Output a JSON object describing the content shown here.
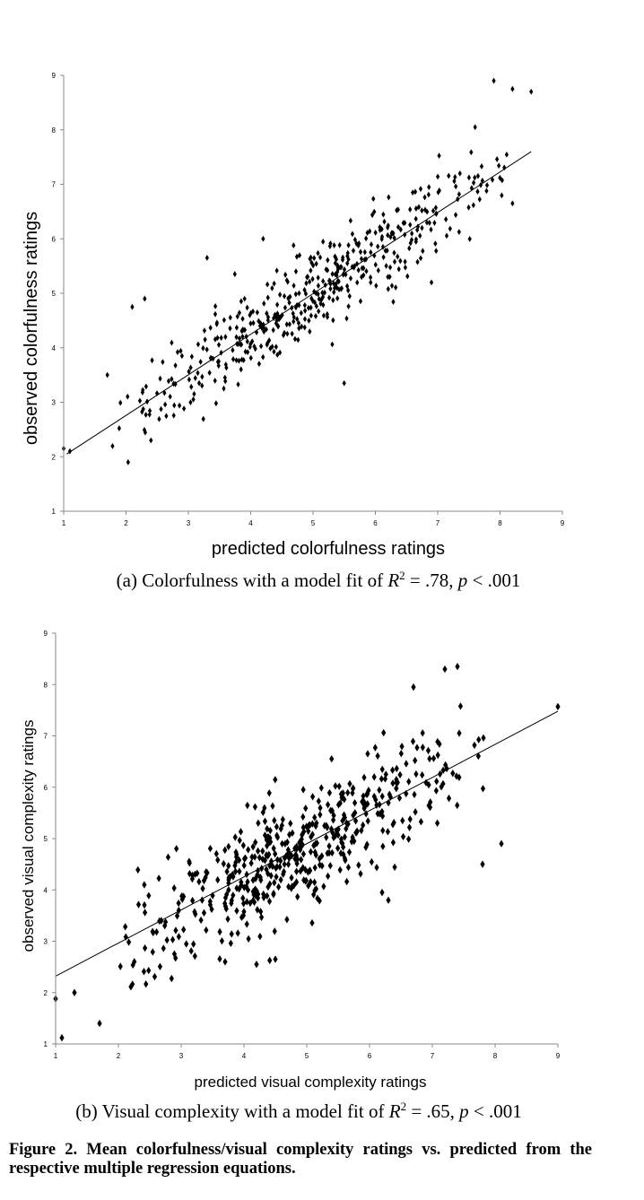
{
  "chart_data": [
    {
      "type": "scatter",
      "xlabel": "predicted colorfulness ratings",
      "ylabel": "observed colorfulness ratings",
      "xlim": [
        1,
        9
      ],
      "ylim": [
        1,
        9
      ],
      "xticks": [
        "1",
        "2",
        "3",
        "4",
        "5",
        "6",
        "7",
        "8",
        "9"
      ],
      "yticks": [
        "1",
        "2",
        "3",
        "4",
        "5",
        "6",
        "7",
        "8",
        "9"
      ],
      "grid": false,
      "marker": "diamond",
      "trendline": {
        "from": [
          1.05,
          2.05
        ],
        "to": [
          8.5,
          7.6
        ]
      },
      "points_highlight": [
        [
          7.9,
          8.9
        ],
        [
          8.2,
          8.75
        ],
        [
          8.5,
          8.7
        ],
        [
          1.0,
          2.15
        ],
        [
          1.1,
          2.1
        ],
        [
          1.7,
          3.5
        ],
        [
          2.1,
          4.75
        ],
        [
          2.3,
          4.9
        ],
        [
          2.4,
          2.3
        ],
        [
          3.3,
          5.65
        ],
        [
          4.2,
          6.0
        ],
        [
          7.6,
          8.05
        ],
        [
          6.9,
          5.2
        ],
        [
          8.2,
          6.65
        ],
        [
          5.5,
          3.35
        ]
      ],
      "n_points": 480,
      "point_spread": 0.42,
      "x_range": [
        1.6,
        8.3
      ]
    },
    {
      "type": "scatter",
      "xlabel": "predicted visual complexity ratings",
      "ylabel": "observed visual complexity ratings",
      "xlim": [
        1,
        9
      ],
      "ylim": [
        1,
        9
      ],
      "xticks": [
        "1",
        "2",
        "3",
        "4",
        "5",
        "6",
        "7",
        "8",
        "9"
      ],
      "yticks": [
        "1",
        "2",
        "3",
        "4",
        "5",
        "6",
        "7",
        "8",
        "9"
      ],
      "grid": false,
      "marker": "diamond",
      "trendline": {
        "from": [
          1.0,
          2.32
        ],
        "to": [
          9.0,
          7.48
        ]
      },
      "points_highlight": [
        [
          1.1,
          1.12
        ],
        [
          1.0,
          1.88
        ],
        [
          1.3,
          2.0
        ],
        [
          1.7,
          1.4
        ],
        [
          7.2,
          8.3
        ],
        [
          7.4,
          8.35
        ],
        [
          6.7,
          7.95
        ],
        [
          9.0,
          7.57
        ],
        [
          8.1,
          4.9
        ],
        [
          7.8,
          4.5
        ],
        [
          4.5,
          2.65
        ],
        [
          4.2,
          2.55
        ],
        [
          3.7,
          2.6
        ],
        [
          6.2,
          3.95
        ],
        [
          6.3,
          3.8
        ]
      ],
      "n_points": 500,
      "point_spread": 0.55,
      "x_range": [
        1.6,
        8.0
      ]
    }
  ],
  "captions": {
    "a": {
      "label": "(a)",
      "text": "Colorfulness with a model fit of",
      "r": "R",
      "exp": "2",
      "rest": " = .78, ",
      "p": "p",
      "tail": " < .001"
    },
    "b": {
      "label": "(b)",
      "text": "Visual complexity with a model fit of",
      "r": "R",
      "exp": "2",
      "rest": " = .65, ",
      "p": "p",
      "tail": " < .001"
    }
  },
  "figure_caption": "Figure 2.  Mean colorfulness/visual complexity ratings vs.  predicted from the respective multiple regression equations."
}
